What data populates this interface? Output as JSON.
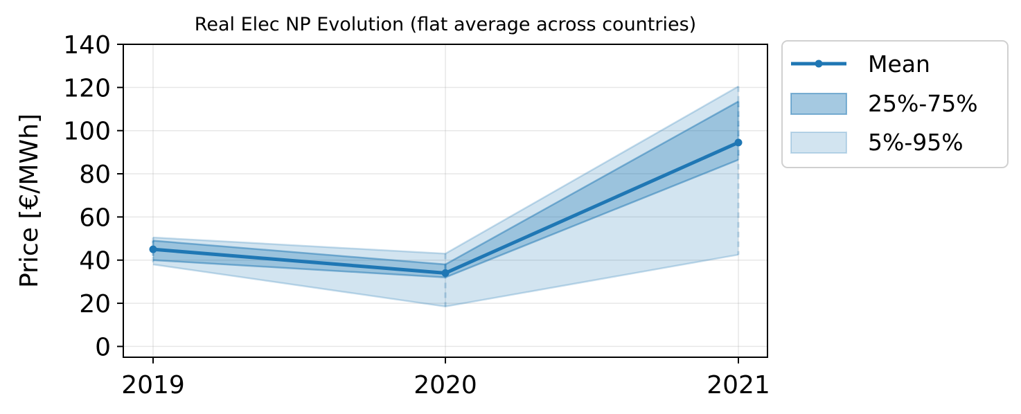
{
  "chart_data": {
    "type": "line",
    "title": "Real Elec NP Evolution (flat average across countries)",
    "xlabel": "",
    "ylabel": "Price [€/MWh]",
    "x": [
      "2019",
      "2020",
      "2021"
    ],
    "ylim": [
      -5,
      140
    ],
    "yticks": [
      0,
      20,
      40,
      60,
      80,
      100,
      120,
      140
    ],
    "grid": true,
    "legend_position": "outside-right-top",
    "series": [
      {
        "name": "Mean",
        "kind": "line",
        "values": [
          45,
          34,
          94.5
        ]
      },
      {
        "name": "25%-75%",
        "kind": "band",
        "lower": [
          40,
          32,
          86.5
        ],
        "upper": [
          49,
          38,
          113.5
        ]
      },
      {
        "name": "5%-95%",
        "kind": "band",
        "lower": [
          38,
          18.5,
          42.5
        ],
        "upper": [
          50.5,
          43,
          120.5
        ]
      }
    ],
    "colors": {
      "line": "#1f77b4",
      "band_inner": "#1f77b4",
      "band_outer": "#1f77b4"
    }
  }
}
